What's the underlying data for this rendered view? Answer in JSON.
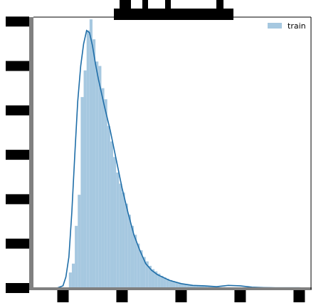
{
  "chart_data": {
    "type": "histogram",
    "title": "",
    "xlabel": "",
    "ylabel": "",
    "legend": {
      "placement": "top-right",
      "entries": [
        "train"
      ]
    },
    "grid": false,
    "xlim": [
      -0.5,
      4.2
    ],
    "ylim": [
      0,
      1.22
    ],
    "x_ticks": [
      0,
      1,
      2,
      3,
      4
    ],
    "y_ticks": [
      0,
      0.2,
      0.4,
      0.6,
      0.8,
      1.0,
      1.2
    ],
    "tick_labels_visible": false,
    "hist": {
      "bin_width": 0.05,
      "edges_start": 0.1,
      "densities": [
        0.07,
        0.11,
        0.28,
        0.42,
        0.86,
        0.98,
        1.16,
        1.21,
        1.12,
        1.02,
        1.0,
        0.9,
        0.85,
        0.73,
        0.66,
        0.59,
        0.52,
        0.47,
        0.43,
        0.38,
        0.33,
        0.28,
        0.24,
        0.2,
        0.17,
        0.14,
        0.12,
        0.1,
        0.085,
        0.075,
        0.065,
        0.055,
        0.048,
        0.042,
        0.036,
        0.031,
        0.027,
        0.024,
        0.021,
        0.018,
        0.016,
        0.014,
        0.012,
        0.011,
        0.01,
        0.009,
        0.008,
        0.007,
        0.006,
        0.005,
        0.005,
        0.004,
        0.004,
        0.003,
        0.003,
        0.003,
        0.002,
        0.002,
        0.002,
        0.002,
        0.001,
        0.001,
        0.001,
        0.001,
        0.001,
        0.001,
        0.001,
        0.001,
        0.001,
        0.001,
        0.001,
        0.001,
        0.001,
        0.001,
        0.001,
        0.001,
        0.001
      ]
    },
    "kde": {
      "x": [
        -0.1,
        0.0,
        0.05,
        0.1,
        0.15,
        0.2,
        0.25,
        0.3,
        0.35,
        0.4,
        0.45,
        0.5,
        0.55,
        0.6,
        0.7,
        0.8,
        0.9,
        1.0,
        1.1,
        1.2,
        1.3,
        1.4,
        1.5,
        1.6,
        1.8,
        2.0,
        2.2,
        2.4,
        2.6,
        2.8,
        3.0,
        3.2,
        3.4,
        3.6,
        3.8,
        4.0,
        4.1
      ],
      "y": [
        0.0,
        0.01,
        0.05,
        0.14,
        0.34,
        0.6,
        0.84,
        1.0,
        1.1,
        1.16,
        1.15,
        1.09,
        1.01,
        0.94,
        0.82,
        0.71,
        0.58,
        0.45,
        0.34,
        0.24,
        0.17,
        0.11,
        0.08,
        0.06,
        0.035,
        0.02,
        0.012,
        0.01,
        0.006,
        0.012,
        0.01,
        0.004,
        0.002,
        0.001,
        0.001,
        0.001,
        0.0
      ]
    },
    "colors": {
      "bar": "#a6c8e0",
      "line": "#1f6ea8",
      "spine": "#808080"
    },
    "series": [
      {
        "name": "train"
      }
    ]
  },
  "legend_label": "train"
}
